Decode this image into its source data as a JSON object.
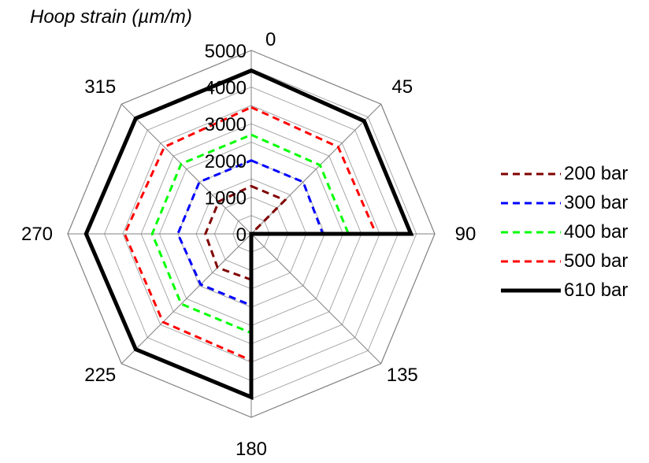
{
  "chart_data": {
    "type": "radar",
    "title": "Hoop strain (µm/m)",
    "angles": [
      "0",
      "45",
      "90",
      "135",
      "180",
      "225",
      "270",
      "315"
    ],
    "rlim": [
      0,
      5000
    ],
    "rticks": [
      "0",
      "1000",
      "2000",
      "3000",
      "4000",
      "5000"
    ],
    "grid": true,
    "legend_position": "right",
    "series": [
      {
        "name": "200 bar",
        "color": "#800000",
        "dash": "dashed",
        "values": [
          1300,
          1300,
          0,
          0,
          1250,
          1300,
          1250,
          1250
        ]
      },
      {
        "name": "300 bar",
        "color": "#0000ff",
        "dash": "dashed",
        "values": [
          2000,
          2000,
          1950,
          0,
          1950,
          1950,
          2000,
          2000
        ]
      },
      {
        "name": "400 bar",
        "color": "#00ff00",
        "dash": "dashed",
        "values": [
          2700,
          2650,
          2650,
          0,
          2700,
          2700,
          2700,
          2700
        ]
      },
      {
        "name": "500 bar",
        "color": "#ff0000",
        "dash": "dashed",
        "values": [
          3450,
          3350,
          3400,
          0,
          3450,
          3400,
          3450,
          3350
        ]
      },
      {
        "name": "610 bar",
        "color": "#000000",
        "dash": "solid",
        "values": [
          4450,
          4350,
          4350,
          0,
          4450,
          4450,
          4500,
          4450
        ]
      }
    ]
  }
}
